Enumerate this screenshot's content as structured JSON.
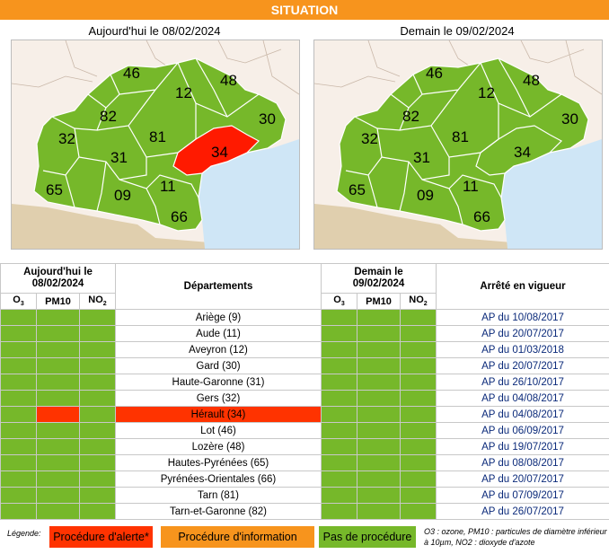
{
  "banner": "SITUATION",
  "map_today_title": "Aujourd'hui le 08/02/2024",
  "map_tomorrow_title": "Demain le 09/02/2024",
  "map_labels": [
    "46",
    "48",
    "12",
    "82",
    "30",
    "32",
    "81",
    "34",
    "31",
    "65",
    "09",
    "11",
    "66"
  ],
  "table": {
    "today_header": "Aujourd'hui le 08/02/2024",
    "departments_header": "Départements",
    "tomorrow_header": "Demain le 09/02/2024",
    "arrete_header": "Arrêté en vigueur",
    "pollutants": [
      "O3",
      "PM10",
      "NO2"
    ],
    "rows": [
      {
        "dept": "Ariège (9)",
        "ap": "AP du 10/08/2017",
        "today": [
          "g",
          "g",
          "g"
        ],
        "tomorrow": [
          "g",
          "g",
          "g"
        ]
      },
      {
        "dept": "Aude (11)",
        "ap": "AP du 20/07/2017",
        "today": [
          "g",
          "g",
          "g"
        ],
        "tomorrow": [
          "g",
          "g",
          "g"
        ]
      },
      {
        "dept": "Aveyron (12)",
        "ap": "AP du 01/03/2018",
        "today": [
          "g",
          "g",
          "g"
        ],
        "tomorrow": [
          "g",
          "g",
          "g"
        ]
      },
      {
        "dept": "Gard (30)",
        "ap": "AP du 20/07/2017",
        "today": [
          "g",
          "g",
          "g"
        ],
        "tomorrow": [
          "g",
          "g",
          "g"
        ]
      },
      {
        "dept": "Haute-Garonne (31)",
        "ap": "AP du 26/10/2017",
        "today": [
          "g",
          "g",
          "g"
        ],
        "tomorrow": [
          "g",
          "g",
          "g"
        ]
      },
      {
        "dept": "Gers (32)",
        "ap": "AP du 04/08/2017",
        "today": [
          "g",
          "g",
          "g"
        ],
        "tomorrow": [
          "g",
          "g",
          "g"
        ]
      },
      {
        "dept": "Hérault (34)",
        "ap": "AP du 04/08/2017",
        "today": [
          "g",
          "r",
          "g"
        ],
        "tomorrow": [
          "g",
          "g",
          "g"
        ],
        "alert": true
      },
      {
        "dept": "Lot (46)",
        "ap": "AP du 06/09/2017",
        "today": [
          "g",
          "g",
          "g"
        ],
        "tomorrow": [
          "g",
          "g",
          "g"
        ]
      },
      {
        "dept": "Lozère (48)",
        "ap": "AP du 19/07/2017",
        "today": [
          "g",
          "g",
          "g"
        ],
        "tomorrow": [
          "g",
          "g",
          "g"
        ]
      },
      {
        "dept": "Hautes-Pyrénées (65)",
        "ap": "AP du 08/08/2017",
        "today": [
          "g",
          "g",
          "g"
        ],
        "tomorrow": [
          "g",
          "g",
          "g"
        ]
      },
      {
        "dept": "Pyrénées-Orientales (66)",
        "ap": "AP du 20/07/2017",
        "today": [
          "g",
          "g",
          "g"
        ],
        "tomorrow": [
          "g",
          "g",
          "g"
        ]
      },
      {
        "dept": "Tarn (81)",
        "ap": "AP du 07/09/2017",
        "today": [
          "g",
          "g",
          "g"
        ],
        "tomorrow": [
          "g",
          "g",
          "g"
        ]
      },
      {
        "dept": "Tarn-et-Garonne (82)",
        "ap": "AP du 26/07/2017",
        "today": [
          "g",
          "g",
          "g"
        ],
        "tomorrow": [
          "g",
          "g",
          "g"
        ]
      }
    ]
  },
  "legend": {
    "label": "Légende:",
    "alert": "Procédure d'alerte*",
    "information": "Procédure d'information",
    "none": "Pas de procédure",
    "note": "O3 : ozone, PM10 : particules de diamètre inférieur à 10µm, NO2 : dioxyde d'azote"
  },
  "colors": {
    "green": "#76b82a",
    "red": "#ff3300",
    "orange": "#f7941d",
    "sea": "#cfe6f6",
    "land": "#f7efe8",
    "sand": "#e0cfae"
  }
}
